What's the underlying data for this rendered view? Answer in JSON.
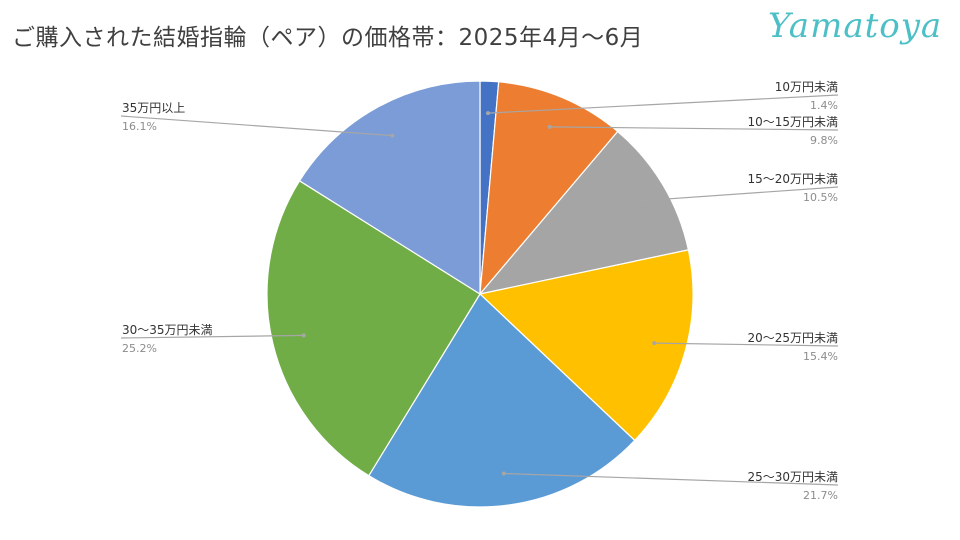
{
  "title": "ご購入された結婚指輪（ペア）の価格帯：2025年4月～6月",
  "logo": "Yamatoya",
  "chart_data": {
    "type": "pie",
    "categories": [
      "10万円未満",
      "10～15万円未満",
      "15～20万円未満",
      "20～25万円未満",
      "25～30万円未満",
      "30～35万円未満",
      "35万円以上"
    ],
    "values": [
      1.4,
      9.8,
      10.5,
      15.4,
      21.7,
      25.2,
      16.1
    ],
    "percent_labels": [
      "1.4%",
      "9.8%",
      "10.5%",
      "15.4%",
      "21.7%",
      "25.2%",
      "16.1%"
    ],
    "colors": [
      "#4472c4",
      "#ed7d31",
      "#a5a5a5",
      "#ffc000",
      "#5b9bd5",
      "#70ad47",
      "#7b9cd6"
    ],
    "start_angle": "12 o'clock",
    "direction": "clockwise",
    "legend": "none (leader-line labels)"
  }
}
